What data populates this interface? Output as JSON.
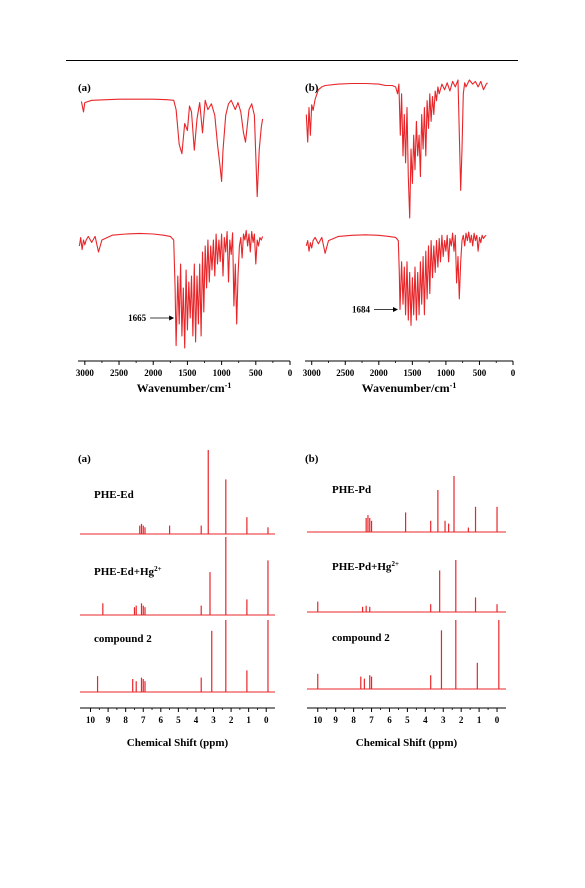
{
  "page": {
    "background": "#ffffff",
    "trace_color": "#e8262a",
    "axis_color": "#000000"
  },
  "chart_data": [
    {
      "type": "line",
      "panel_label": "(a)",
      "xlabel": "Wavenumber/cm",
      "xlabel_sup": "-1",
      "x_ticks": [
        3000,
        2500,
        2000,
        1500,
        1000,
        500,
        0
      ],
      "xlim": [
        3100,
        0
      ],
      "grid": false,
      "series": [
        {
          "x": [
            3050,
            3020,
            3000,
            2900,
            2500,
            2000,
            1800,
            1700,
            1665,
            1620,
            1580,
            1540,
            1500,
            1470,
            1440,
            1400,
            1360,
            1320,
            1280,
            1240,
            1200,
            1150,
            1100,
            1060,
            1020,
            1000,
            980,
            940,
            900,
            860,
            800,
            760,
            720,
            680,
            650,
            600,
            560,
            520,
            480,
            450,
            420,
            400
          ],
          "transmittance": [
            0.97,
            0.88,
            0.96,
            0.98,
            0.99,
            0.99,
            0.985,
            0.98,
            0.9,
            0.6,
            0.52,
            0.78,
            0.72,
            0.93,
            0.88,
            0.55,
            0.82,
            0.96,
            0.7,
            0.98,
            0.9,
            0.95,
            0.85,
            0.6,
            0.4,
            0.28,
            0.55,
            0.85,
            0.95,
            0.98,
            0.9,
            0.96,
            0.88,
            0.7,
            0.62,
            0.9,
            0.95,
            0.85,
            0.15,
            0.55,
            0.75,
            0.82
          ]
        },
        {
          "x": [
            3080,
            3060,
            3040,
            3020,
            3000,
            2980,
            2950,
            2900,
            2850,
            2800,
            2750,
            2600,
            2400,
            2200,
            2000,
            1850,
            1750,
            1700,
            1680,
            1665,
            1640,
            1620,
            1600,
            1580,
            1560,
            1540,
            1520,
            1500,
            1480,
            1460,
            1440,
            1420,
            1400,
            1380,
            1360,
            1340,
            1320,
            1300,
            1280,
            1260,
            1240,
            1220,
            1200,
            1180,
            1160,
            1140,
            1120,
            1100,
            1080,
            1060,
            1040,
            1020,
            1000,
            980,
            960,
            940,
            920,
            900,
            880,
            860,
            840,
            820,
            800,
            780,
            760,
            740,
            720,
            700,
            680,
            660,
            640,
            620,
            600,
            580,
            560,
            540,
            520,
            500,
            480,
            460,
            440,
            420,
            400
          ],
          "transmittance": [
            0.85,
            0.92,
            0.82,
            0.9,
            0.86,
            0.9,
            0.93,
            0.88,
            0.93,
            0.8,
            0.9,
            0.94,
            0.95,
            0.955,
            0.95,
            0.94,
            0.93,
            0.9,
            0.5,
            0.02,
            0.6,
            0.2,
            0.7,
            0.1,
            0.5,
            0.0,
            0.65,
            0.15,
            0.55,
            0.25,
            0.6,
            0.1,
            0.7,
            0.05,
            0.6,
            0.2,
            0.7,
            0.1,
            0.8,
            0.3,
            0.85,
            0.5,
            0.9,
            0.55,
            0.85,
            0.65,
            0.9,
            0.6,
            0.95,
            0.7,
            0.9,
            0.72,
            0.95,
            0.6,
            0.92,
            0.8,
            0.97,
            0.55,
            0.9,
            0.78,
            0.96,
            0.35,
            0.7,
            0.2,
            0.6,
            0.85,
            0.92,
            0.75,
            0.95,
            0.9,
            0.98,
            0.85,
            0.95,
            0.8,
            0.97,
            0.88,
            0.95,
            0.7,
            0.9,
            0.85,
            0.92,
            0.9,
            0.93
          ]
        }
      ],
      "annotations": [
        {
          "text": "1665",
          "series": 1,
          "x": 1665
        }
      ]
    },
    {
      "type": "line",
      "panel_label": "(b)",
      "xlabel": "Wavenumber/cm",
      "xlabel_sup": "-1",
      "x_ticks": [
        3000,
        2500,
        2000,
        1500,
        1000,
        500,
        0
      ],
      "xlim": [
        3100,
        0
      ],
      "grid": false,
      "series": [
        {
          "x": [
            3080,
            3060,
            3040,
            3020,
            3000,
            2980,
            2950,
            2900,
            2850,
            2800,
            2600,
            2400,
            2200,
            2000,
            1900,
            1800,
            1750,
            1720,
            1700,
            1680,
            1660,
            1640,
            1620,
            1600,
            1580,
            1560,
            1540,
            1520,
            1500,
            1480,
            1460,
            1440,
            1420,
            1400,
            1380,
            1360,
            1340,
            1320,
            1300,
            1280,
            1260,
            1240,
            1220,
            1200,
            1180,
            1160,
            1140,
            1120,
            1100,
            1060,
            1020,
            980,
            940,
            900,
            860,
            820,
            780,
            760,
            740,
            720,
            700,
            650,
            600,
            560,
            520,
            480,
            440,
            400,
            380
          ],
          "transmittance": [
            0.75,
            0.55,
            0.8,
            0.6,
            0.82,
            0.78,
            0.86,
            0.93,
            0.95,
            0.96,
            0.97,
            0.975,
            0.975,
            0.97,
            0.96,
            0.96,
            0.95,
            0.9,
            0.97,
            0.6,
            0.9,
            0.45,
            0.75,
            0.4,
            0.8,
            0.3,
            0.0,
            0.5,
            0.25,
            0.6,
            0.35,
            0.7,
            0.45,
            0.6,
            0.3,
            0.75,
            0.5,
            0.8,
            0.45,
            0.85,
            0.65,
            0.9,
            0.7,
            0.88,
            0.75,
            0.92,
            0.85,
            0.95,
            0.9,
            0.97,
            0.93,
            0.98,
            0.92,
            0.99,
            0.95,
            1.0,
            0.2,
            0.5,
            0.9,
            0.98,
            0.95,
            1.0,
            0.97,
            0.99,
            0.95,
            0.99,
            0.93,
            0.97,
            0.98
          ]
        },
        {
          "x": [
            3080,
            3060,
            3040,
            3020,
            3000,
            2980,
            2950,
            2900,
            2850,
            2800,
            2750,
            2600,
            2400,
            2200,
            2000,
            1850,
            1750,
            1710,
            1695,
            1684,
            1660,
            1640,
            1620,
            1600,
            1580,
            1560,
            1540,
            1520,
            1500,
            1480,
            1460,
            1440,
            1420,
            1400,
            1380,
            1360,
            1340,
            1320,
            1300,
            1280,
            1260,
            1240,
            1220,
            1200,
            1180,
            1160,
            1140,
            1120,
            1100,
            1080,
            1060,
            1040,
            1020,
            1000,
            980,
            960,
            940,
            920,
            900,
            880,
            860,
            840,
            820,
            800,
            780,
            760,
            740,
            720,
            700,
            680,
            660,
            640,
            620,
            600,
            580,
            560,
            540,
            520,
            500,
            480,
            460,
            440,
            420,
            400
          ],
          "transmittance": [
            0.85,
            0.9,
            0.8,
            0.88,
            0.83,
            0.9,
            0.93,
            0.87,
            0.93,
            0.78,
            0.9,
            0.94,
            0.95,
            0.955,
            0.95,
            0.94,
            0.93,
            0.9,
            0.6,
            0.25,
            0.7,
            0.3,
            0.65,
            0.2,
            0.7,
            0.15,
            0.6,
            0.1,
            0.55,
            0.2,
            0.65,
            0.15,
            0.6,
            0.2,
            0.7,
            0.3,
            0.75,
            0.2,
            0.8,
            0.35,
            0.85,
            0.4,
            0.9,
            0.55,
            0.85,
            0.6,
            0.9,
            0.65,
            0.92,
            0.7,
            0.95,
            0.75,
            0.9,
            0.8,
            0.95,
            0.7,
            0.92,
            0.85,
            0.97,
            0.8,
            0.95,
            0.5,
            0.75,
            0.35,
            0.7,
            0.9,
            0.95,
            0.85,
            0.97,
            0.9,
            0.98,
            0.88,
            0.95,
            0.85,
            0.97,
            0.9,
            0.95,
            0.8,
            0.93,
            0.88,
            0.95,
            0.92,
            0.94,
            0.95
          ]
        }
      ],
      "annotations": [
        {
          "text": "1684",
          "series": 1,
          "x": 1684
        }
      ]
    },
    {
      "type": "line",
      "panel_label": "(a)",
      "xlabel": "Chemical Shift (ppm)",
      "x_ticks": [
        10,
        9,
        8,
        7,
        6,
        5,
        4,
        3,
        2,
        1,
        0
      ],
      "xlim": [
        10.6,
        -0.5
      ],
      "grid": false,
      "series": [
        {
          "name": "PHE-Ed",
          "peaks": [
            [
              7.2,
              0.1
            ],
            [
              7.1,
              0.12
            ],
            [
              7.0,
              0.1
            ],
            [
              6.9,
              0.08
            ],
            [
              5.5,
              0.1
            ],
            [
              3.7,
              0.1
            ],
            [
              3.3,
              1.0
            ],
            [
              2.3,
              0.65
            ],
            [
              1.1,
              0.2
            ],
            [
              -0.1,
              0.08
            ]
          ]
        },
        {
          "name": "PHE-Ed+Hg",
          "name_sup": "2+",
          "peaks": [
            [
              9.3,
              0.15
            ],
            [
              7.5,
              0.1
            ],
            [
              7.4,
              0.12
            ],
            [
              7.1,
              0.15
            ],
            [
              7.0,
              0.12
            ],
            [
              6.9,
              0.1
            ],
            [
              3.7,
              0.12
            ],
            [
              3.2,
              0.55
            ],
            [
              2.3,
              1.0
            ],
            [
              1.1,
              0.2
            ],
            [
              -0.1,
              0.7
            ]
          ]
        },
        {
          "name": "compound 2",
          "peaks": [
            [
              9.6,
              0.22
            ],
            [
              7.6,
              0.18
            ],
            [
              7.4,
              0.15
            ],
            [
              7.1,
              0.2
            ],
            [
              7.0,
              0.18
            ],
            [
              6.9,
              0.15
            ],
            [
              3.7,
              0.2
            ],
            [
              3.1,
              0.85
            ],
            [
              2.3,
              1.0
            ],
            [
              1.1,
              0.3
            ],
            [
              -0.1,
              1.0
            ]
          ]
        }
      ]
    },
    {
      "type": "line",
      "panel_label": "(b)",
      "xlabel": "Chemical Shift (ppm)",
      "x_ticks": [
        10,
        9,
        8,
        7,
        6,
        5,
        4,
        3,
        2,
        1,
        0
      ],
      "xlim": [
        10.6,
        -0.5
      ],
      "grid": false,
      "series": [
        {
          "name": "PHE-Pd",
          "peaks": [
            [
              7.3,
              0.25
            ],
            [
              7.2,
              0.3
            ],
            [
              7.1,
              0.25
            ],
            [
              7.0,
              0.2
            ],
            [
              5.1,
              0.35
            ],
            [
              3.7,
              0.2
            ],
            [
              3.3,
              0.75
            ],
            [
              2.9,
              0.2
            ],
            [
              2.7,
              0.15
            ],
            [
              2.4,
              1.0
            ],
            [
              1.6,
              0.08
            ],
            [
              1.2,
              0.45
            ],
            [
              0.0,
              0.45
            ]
          ]
        },
        {
          "name": "PHE-Pd+Hg",
          "name_sup": "2+",
          "peaks": [
            [
              10.0,
              0.2
            ],
            [
              7.5,
              0.1
            ],
            [
              7.3,
              0.12
            ],
            [
              7.1,
              0.1
            ],
            [
              3.7,
              0.15
            ],
            [
              3.2,
              0.8
            ],
            [
              2.3,
              1.0
            ],
            [
              1.2,
              0.28
            ],
            [
              0.0,
              0.15
            ]
          ]
        },
        {
          "name": "compound 2",
          "peaks": [
            [
              10.0,
              0.22
            ],
            [
              7.6,
              0.18
            ],
            [
              7.4,
              0.15
            ],
            [
              7.1,
              0.2
            ],
            [
              7.0,
              0.18
            ],
            [
              3.7,
              0.2
            ],
            [
              3.1,
              0.85
            ],
            [
              2.3,
              1.0
            ],
            [
              1.1,
              0.38
            ],
            [
              -0.1,
              1.0
            ]
          ]
        }
      ]
    }
  ]
}
